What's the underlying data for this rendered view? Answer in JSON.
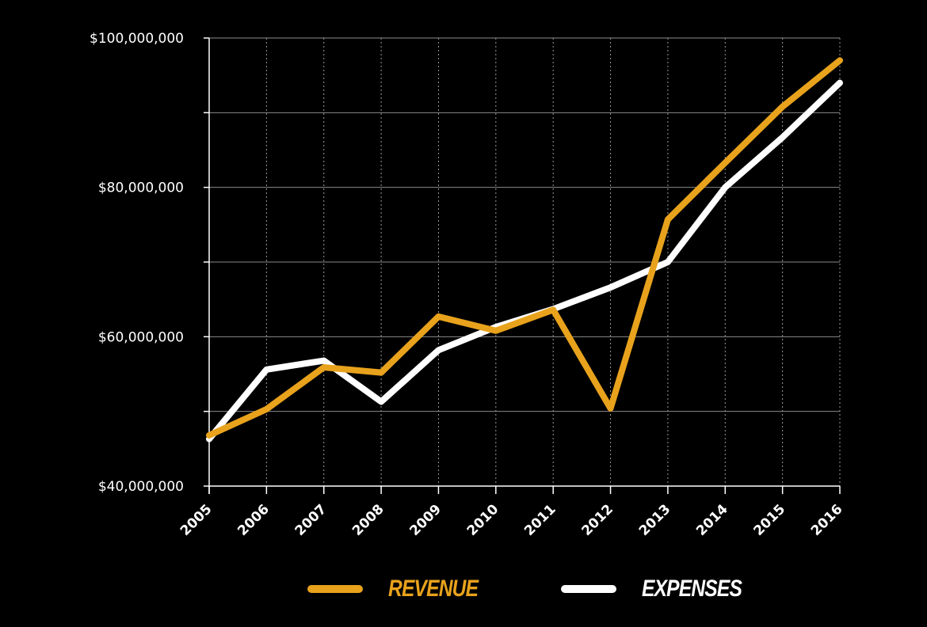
{
  "chart_data": {
    "type": "line",
    "categories": [
      "2005",
      "2006",
      "2007",
      "2008",
      "2009",
      "2010",
      "2011",
      "2012",
      "2013",
      "2014",
      "2015",
      "2016"
    ],
    "series": [
      {
        "name": "REVENUE",
        "color": "#e8a21c",
        "values": [
          46800000,
          50300000,
          55900000,
          55200000,
          62700000,
          60800000,
          63600000,
          50400000,
          75700000,
          83300000,
          90800000,
          97000000
        ]
      },
      {
        "name": "EXPENSES",
        "color": "#ffffff",
        "values": [
          46300000,
          55600000,
          56800000,
          51300000,
          58200000,
          61300000,
          63700000,
          66600000,
          70000000,
          80000000,
          86700000,
          94000000
        ]
      }
    ],
    "yticks": [
      40000000,
      50000000,
      60000000,
      70000000,
      80000000,
      90000000,
      100000000
    ],
    "ytick_labels": [
      "$40,000,000",
      "",
      "$60,000,000",
      "",
      "$80,000,000",
      "",
      "$100,000,000"
    ],
    "ylim": [
      40000000,
      100000000
    ],
    "grid": true,
    "legend_position": "bottom",
    "background": "#000000",
    "xlabel": "",
    "ylabel": ""
  }
}
